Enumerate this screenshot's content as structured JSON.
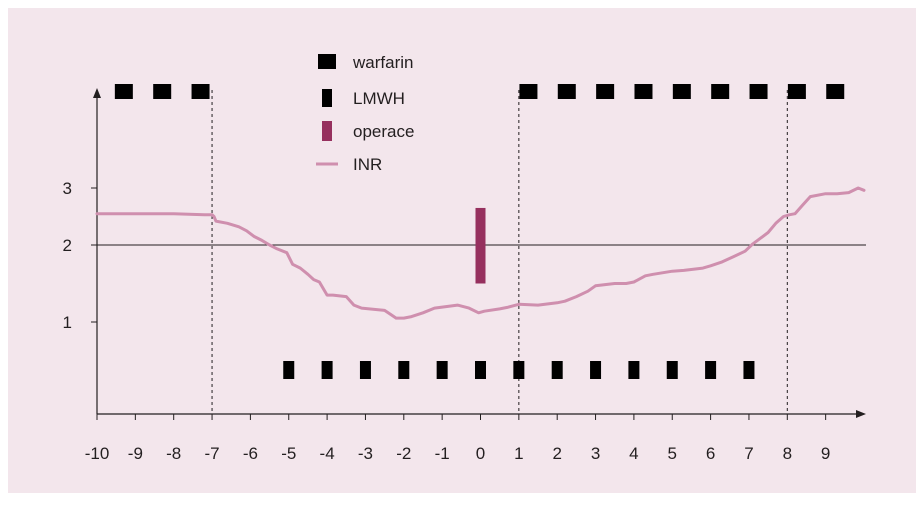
{
  "colors": {
    "panel_bg": "#f3e6ec",
    "axis": "#231f20",
    "warfarin": "#000000",
    "lmwh": "#000000",
    "operace": "#96305e",
    "inr": "#cf8fae"
  },
  "chart_data": {
    "type": "line",
    "title": "",
    "xlabel": "",
    "ylabel": "",
    "xlim": [
      -10,
      10
    ],
    "ylim": [
      0,
      4
    ],
    "x_ticks": [
      -10,
      -9,
      -8,
      -7,
      -6,
      -5,
      -4,
      -3,
      -2,
      -1,
      0,
      1,
      2,
      3,
      4,
      5,
      6,
      7,
      8,
      9
    ],
    "x_tick_labels": [
      "-10",
      "-9",
      "-8",
      "-7",
      "-6",
      "-5",
      "-4",
      "-3",
      "-2",
      "-1",
      "0",
      "1",
      "2",
      "3",
      "4",
      "5",
      "6",
      "7",
      "8",
      "9"
    ],
    "y_ticks": [
      1,
      2,
      3
    ],
    "y_tick_labels": [
      "1",
      "2",
      "3"
    ],
    "reference_line_y": 2,
    "dashed_verticals_x": [
      -7,
      1,
      8
    ],
    "legend": {
      "placement": "top-center",
      "items": [
        {
          "key": "warfarin",
          "label": "warfarin",
          "marker": "wide-square"
        },
        {
          "key": "lmwh",
          "label": "LMWH",
          "marker": "narrow-bar"
        },
        {
          "key": "operace",
          "label": "operace",
          "marker": "tall-bar"
        },
        {
          "key": "inr",
          "label": "INR",
          "marker": "line"
        }
      ]
    },
    "warfarin_days": [
      -9.3,
      -8.3,
      -7.3,
      1.25,
      2.25,
      3.25,
      4.25,
      5.25,
      6.25,
      7.25,
      8.25,
      9.25
    ],
    "lmwh_days": [
      -5,
      -4,
      -3,
      -2,
      -1,
      0,
      1,
      2,
      3,
      4,
      5,
      6,
      7
    ],
    "operace": {
      "x": 0,
      "y_low": 1.5,
      "y_high": 2.65
    },
    "series": [
      {
        "name": "INR",
        "x": [
          -10,
          -9,
          -8,
          -7.2,
          -7,
          -6.95,
          -6.9,
          -6.6,
          -6.3,
          -6.1,
          -5.9,
          -5.7,
          -5.5,
          -5.3,
          -5.05,
          -4.9,
          -4.7,
          -4.5,
          -4.35,
          -4.2,
          -4.0,
          -3.85,
          -3.5,
          -3.3,
          -3.1,
          -2.5,
          -2.35,
          -2.2,
          -2.0,
          -1.8,
          -1.5,
          -1.2,
          -0.9,
          -0.6,
          -0.3,
          -0.05,
          0.1,
          0.5,
          0.7,
          1.0,
          1.5,
          2.0,
          2.2,
          2.5,
          2.8,
          3.0,
          3.5,
          3.8,
          4.0,
          4.3,
          4.5,
          5.0,
          5.3,
          5.8,
          6.0,
          6.3,
          6.6,
          6.9,
          7.1,
          7.3,
          7.5,
          7.7,
          7.9,
          8.05,
          8.2,
          8.4,
          8.6,
          9.0,
          9.3,
          9.6,
          9.85,
          10.0
        ],
        "y": [
          2.55,
          2.55,
          2.55,
          2.53,
          2.53,
          2.5,
          2.42,
          2.38,
          2.32,
          2.25,
          2.15,
          2.08,
          2.0,
          1.95,
          1.9,
          1.75,
          1.7,
          1.62,
          1.55,
          1.52,
          1.35,
          1.35,
          1.33,
          1.22,
          1.18,
          1.15,
          1.1,
          1.05,
          1.05,
          1.07,
          1.12,
          1.18,
          1.2,
          1.22,
          1.18,
          1.12,
          1.14,
          1.17,
          1.19,
          1.23,
          1.22,
          1.25,
          1.27,
          1.33,
          1.4,
          1.47,
          1.5,
          1.5,
          1.52,
          1.6,
          1.62,
          1.66,
          1.67,
          1.7,
          1.73,
          1.78,
          1.85,
          1.92,
          2.02,
          2.12,
          2.22,
          2.38,
          2.5,
          2.53,
          2.55,
          2.7,
          2.85,
          2.9,
          2.9,
          2.92,
          3.0,
          2.96
        ]
      }
    ]
  }
}
